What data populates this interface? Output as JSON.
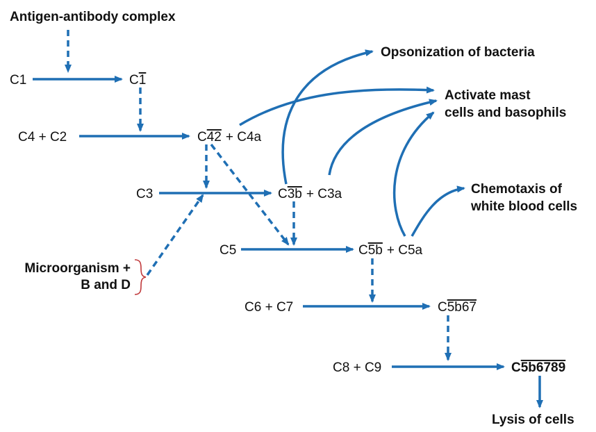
{
  "accent_color": "#1f6fb4",
  "brace_color": "#c0393b",
  "nodes": {
    "antigen": "Antigen-antibody complex",
    "c1": "C1",
    "c1_active_base": "C",
    "c1_active_over": "1",
    "c4c2": "C4 + C2",
    "c42_base": "C",
    "c42_over": "42",
    "c42_tail": "+ C4a",
    "c3": "C3",
    "c3b_base": "C",
    "c3b_over": "3b",
    "c3b_tail": "+ C3a",
    "microorganism_line1": "Microorganism +",
    "microorganism_line2": "B and D",
    "c5": "C5",
    "c5b_base": "C",
    "c5b_over": "5b",
    "c5b_tail": "+ C5a",
    "c6c7": "C6 + C7",
    "c5b67_base": "C",
    "c5b67_over": "5b67",
    "c8c9": "C8 + C9",
    "c5b6789_base": "C",
    "c5b6789_over": "5b6789"
  },
  "outcomes": {
    "opsonization": "Opsonization of bacteria",
    "mast_line1": "Activate mast",
    "mast_line2": "cells and basophils",
    "chemotaxis_line1": "Chemotaxis of",
    "chemotaxis_line2": "white blood cells",
    "lysis": "Lysis of cells"
  }
}
